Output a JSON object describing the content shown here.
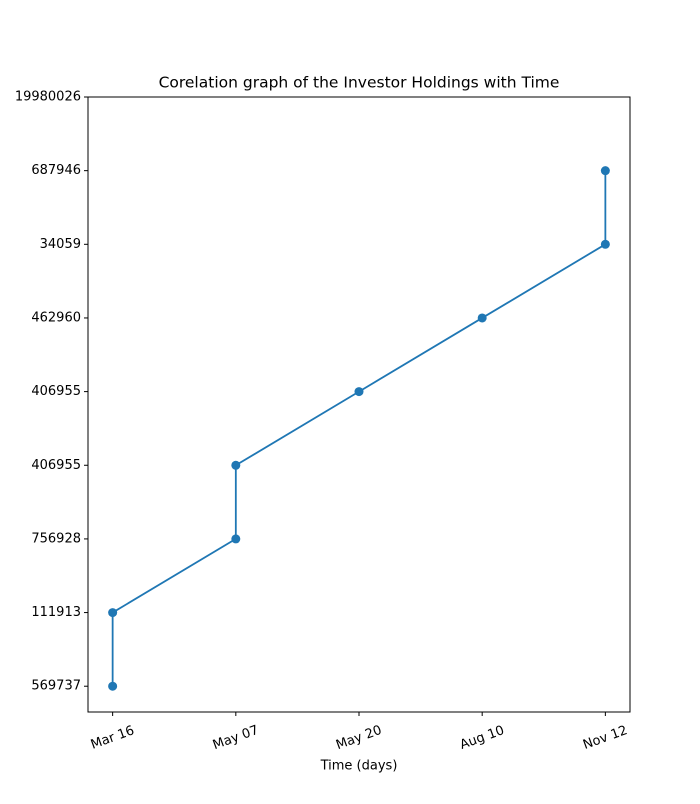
{
  "chart_data": {
    "type": "line",
    "title": "Corelation graph of the Investor Holdings with Time",
    "xlabel": "Time (days)",
    "x": [
      0,
      0,
      1,
      1,
      2,
      3,
      4,
      4
    ],
    "series": [
      {
        "color": "#1f77b4",
        "values": [
          0,
          1,
          2,
          3,
          4,
          5,
          6,
          7
        ]
      }
    ],
    "xlim": [
      -0.2,
      4.2
    ],
    "xticks": [
      {
        "value": 0,
        "label": "Mar 16"
      },
      {
        "value": 1,
        "label": "May 07"
      },
      {
        "value": 2,
        "label": "May 20"
      },
      {
        "value": 3,
        "label": "Aug 10"
      },
      {
        "value": 4,
        "label": "Nov 12"
      }
    ],
    "ylim": [
      -0.35,
      8
    ],
    "yticks": [
      {
        "value": 0,
        "label": "569737"
      },
      {
        "value": 1,
        "label": "111913"
      },
      {
        "value": 2,
        "label": "756928"
      },
      {
        "value": 3,
        "label": "406955"
      },
      {
        "value": 4,
        "label": "406955"
      },
      {
        "value": 5,
        "label": "462960"
      },
      {
        "value": 6,
        "label": "34059"
      },
      {
        "value": 7,
        "label": "687946"
      },
      {
        "value": 8,
        "label": "19980026"
      }
    ]
  }
}
